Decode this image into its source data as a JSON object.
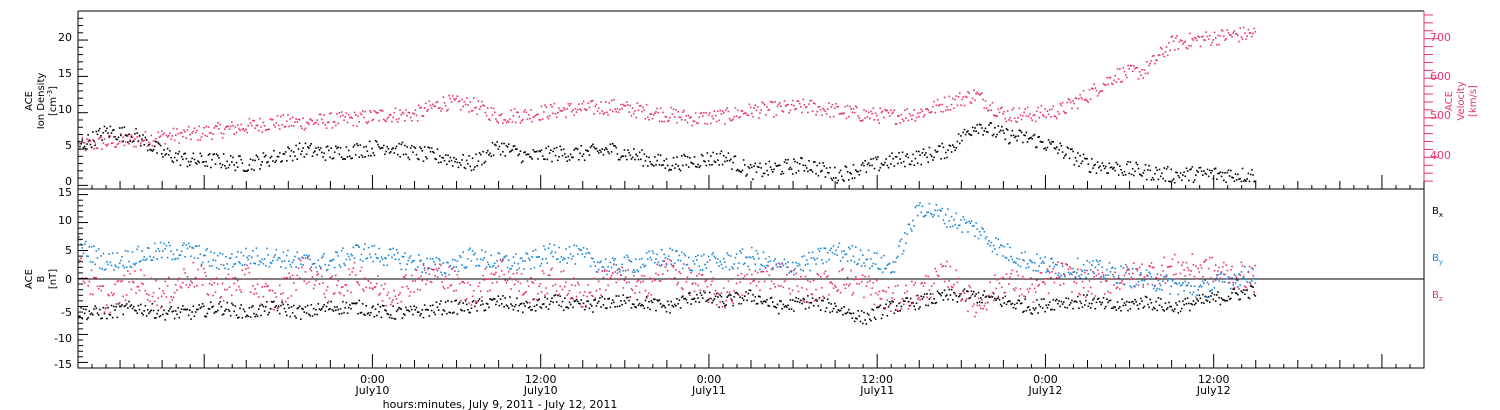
{
  "colors": {
    "black": "#000000",
    "red": "#e8336b",
    "blue": "#1a86d8"
  },
  "xaxis": {
    "title": "hours:minutes,  July  9, 2011 - July 12, 2011",
    "ticks": [
      {
        "t": 21,
        "time": "0:00",
        "day": "July10"
      },
      {
        "t": 33,
        "time": "12:00",
        "day": "July10"
      },
      {
        "t": 45,
        "time": "0:00",
        "day": "July11"
      },
      {
        "t": 57,
        "time": "12:00",
        "day": "July11"
      },
      {
        "t": 69,
        "time": "0:00",
        "day": "July12"
      },
      {
        "t": 81,
        "time": "12:00",
        "day": "July12"
      }
    ],
    "range_hours": [
      0,
      96
    ],
    "units": "hours since 0:00 July 9, 2011"
  },
  "panels": {
    "top": {
      "left_label": [
        "ACE",
        "Ion Density",
        "[cm",
        "-3",
        "]"
      ],
      "left_ticks": [
        "0",
        "5",
        "10",
        "15",
        "20"
      ],
      "right_label": [
        "ACE",
        "Velocity",
        "[km/s]"
      ],
      "right_ticks": [
        "400",
        "500",
        "600",
        "700"
      ]
    },
    "bottom": {
      "left_label": [
        "ACE",
        "B",
        "[nT]"
      ],
      "left_ticks": [
        "-15",
        "-10",
        "-5",
        "0",
        "5",
        "10",
        "15"
      ],
      "legend": [
        {
          "base": "B",
          "sub": "x",
          "color": "#000000"
        },
        {
          "base": "B",
          "sub": "y",
          "color": "#1a86d8"
        },
        {
          "base": "B",
          "sub": "z",
          "color": "#e8336b"
        }
      ]
    }
  },
  "chart_data": [
    {
      "type": "scatter",
      "title": "",
      "xlabel": "hours:minutes,  July  9, 2011 - July 12, 2011",
      "ylabel": "ACE Ion Density [cm-3]",
      "y2label": "ACE Velocity [km/s]",
      "xlim": [
        0,
        96
      ],
      "ylim": [
        -0.5,
        24
      ],
      "y2lim": [
        320,
        770
      ],
      "series": [
        {
          "axis": "left",
          "color": "#000000",
          "x": [
            0,
            2,
            4,
            6,
            8,
            10,
            12,
            14,
            16,
            18,
            20,
            22,
            24,
            26,
            28,
            30,
            32,
            34,
            36,
            38,
            40,
            42,
            44,
            46,
            48,
            50,
            52,
            54,
            56,
            58,
            60,
            62,
            64,
            66,
            68,
            70,
            72,
            74,
            76,
            78,
            80,
            82,
            84
          ],
          "y": [
            5.5,
            7.5,
            7.0,
            4.5,
            3.5,
            3.5,
            3.0,
            4.0,
            5.0,
            4.5,
            5.0,
            5.5,
            4.5,
            4.0,
            3.0,
            5.5,
            4.0,
            4.5,
            4.5,
            5.0,
            4.0,
            3.0,
            3.5,
            4.0,
            2.0,
            2.5,
            3.0,
            1.5,
            2.5,
            3.5,
            4.0,
            5.0,
            8.5,
            7.0,
            6.5,
            5.0,
            3.0,
            2.5,
            2.0,
            1.5,
            1.7,
            1.6,
            1.5
          ]
        },
        {
          "axis": "right",
          "color": "#e8336b",
          "x": [
            0,
            2,
            4,
            6,
            8,
            10,
            12,
            14,
            16,
            18,
            20,
            22,
            24,
            26,
            28,
            30,
            32,
            34,
            36,
            38,
            40,
            42,
            44,
            46,
            48,
            50,
            52,
            54,
            56,
            58,
            60,
            62,
            64,
            66,
            68,
            70,
            72,
            74,
            76,
            78,
            80,
            82,
            84
          ],
          "y": [
            430,
            440,
            445,
            455,
            460,
            470,
            480,
            490,
            490,
            495,
            500,
            510,
            510,
            540,
            535,
            505,
            510,
            520,
            525,
            530,
            520,
            510,
            500,
            505,
            520,
            525,
            530,
            520,
            510,
            505,
            515,
            540,
            560,
            510,
            510,
            520,
            560,
            610,
            620,
            690,
            700,
            710,
            715
          ]
        }
      ]
    },
    {
      "type": "scatter",
      "title": "",
      "xlabel": "hours:minutes,  July  9, 2011 - July 12, 2011",
      "ylabel": "ACE B [nT]",
      "xlim": [
        0,
        96
      ],
      "ylim": [
        -16,
        16
      ],
      "series": [
        {
          "name": "Bx",
          "color": "#000000",
          "x": [
            0,
            2,
            4,
            6,
            8,
            10,
            12,
            14,
            16,
            18,
            20,
            22,
            24,
            26,
            28,
            30,
            32,
            34,
            36,
            38,
            40,
            42,
            44,
            46,
            48,
            50,
            52,
            54,
            56,
            58,
            60,
            62,
            64,
            66,
            68,
            70,
            72,
            74,
            76,
            78,
            80,
            82,
            84
          ],
          "y": [
            -6,
            -6,
            -5,
            -6,
            -6,
            -5,
            -6,
            -5,
            -6,
            -5,
            -5,
            -6,
            -6,
            -5,
            -5,
            -4,
            -5,
            -4,
            -5,
            -4,
            -4,
            -5,
            -3,
            -4,
            -3,
            -5,
            -4,
            -5,
            -7,
            -5,
            -4,
            -3,
            -3,
            -4,
            -5,
            -4,
            -4,
            -5,
            -4,
            -5,
            -4,
            -3,
            -2
          ]
        },
        {
          "name": "By",
          "color": "#1a86d8",
          "x": [
            0,
            2,
            4,
            6,
            8,
            10,
            12,
            14,
            16,
            18,
            20,
            22,
            24,
            26,
            28,
            30,
            32,
            34,
            36,
            38,
            40,
            42,
            44,
            46,
            48,
            50,
            52,
            54,
            56,
            58,
            60,
            62,
            64,
            66,
            68,
            70,
            72,
            74,
            76,
            78,
            80,
            82,
            84
          ],
          "y": [
            6,
            3,
            4,
            5,
            5,
            3,
            4,
            4,
            3,
            3,
            5,
            4,
            3,
            2,
            4,
            3,
            3,
            5,
            4,
            2,
            3,
            4,
            3,
            3,
            4,
            2,
            3,
            5,
            4,
            2,
            13,
            11,
            9,
            5,
            3,
            2,
            2,
            1,
            0,
            -1,
            -2,
            0,
            1
          ]
        },
        {
          "name": "Bz",
          "color": "#e8336b",
          "x": [
            0,
            2,
            4,
            6,
            8,
            10,
            12,
            14,
            16,
            18,
            20,
            22,
            24,
            26,
            28,
            30,
            32,
            34,
            36,
            38,
            40,
            42,
            44,
            46,
            48,
            50,
            52,
            54,
            56,
            58,
            60,
            62,
            64,
            66,
            68,
            70,
            72,
            74,
            76,
            78,
            80,
            82,
            84
          ],
          "y": [
            2,
            -4,
            0,
            -3,
            1,
            -2,
            0,
            -4,
            2,
            -2,
            1,
            -3,
            0,
            1,
            -3,
            2,
            -2,
            0,
            -3,
            1,
            -2,
            2,
            -1,
            -3,
            0,
            1,
            -2,
            0,
            -1,
            -4,
            -2,
            1,
            -5,
            0,
            -2,
            1,
            -1,
            0,
            1,
            2,
            2,
            1,
            0
          ]
        }
      ]
    }
  ]
}
